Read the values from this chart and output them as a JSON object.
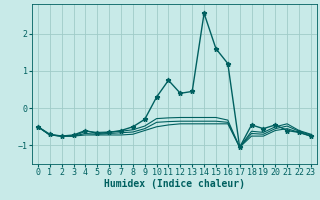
{
  "xlabel": "Humidex (Indice chaleur)",
  "ylabel": "",
  "background_color": "#c8eae8",
  "grid_color": "#a0ccc8",
  "line_color": "#006060",
  "x": [
    0,
    1,
    2,
    3,
    4,
    5,
    6,
    7,
    8,
    9,
    10,
    11,
    12,
    13,
    14,
    15,
    16,
    17,
    18,
    19,
    20,
    21,
    22,
    23
  ],
  "series": [
    [
      -0.5,
      -0.7,
      -0.75,
      -0.72,
      -0.6,
      -0.68,
      -0.65,
      -0.6,
      -0.5,
      -0.3,
      0.3,
      0.75,
      0.4,
      0.45,
      2.55,
      1.6,
      1.2,
      -1.05,
      -0.45,
      -0.55,
      -0.45,
      -0.6,
      -0.65,
      -0.75
    ],
    [
      -0.5,
      -0.72,
      -0.75,
      -0.75,
      -0.72,
      -0.72,
      -0.72,
      -0.72,
      -0.7,
      -0.6,
      -0.5,
      -0.45,
      -0.42,
      -0.42,
      -0.42,
      -0.42,
      -0.42,
      -1.05,
      -0.75,
      -0.75,
      -0.6,
      -0.55,
      -0.65,
      -0.75
    ],
    [
      -0.5,
      -0.72,
      -0.75,
      -0.75,
      -0.68,
      -0.7,
      -0.68,
      -0.66,
      -0.64,
      -0.55,
      -0.38,
      -0.36,
      -0.35,
      -0.35,
      -0.35,
      -0.35,
      -0.38,
      -1.05,
      -0.68,
      -0.7,
      -0.55,
      -0.48,
      -0.62,
      -0.72
    ],
    [
      -0.5,
      -0.72,
      -0.75,
      -0.75,
      -0.62,
      -0.65,
      -0.64,
      -0.62,
      -0.58,
      -0.48,
      -0.28,
      -0.26,
      -0.25,
      -0.25,
      -0.25,
      -0.25,
      -0.32,
      -1.05,
      -0.62,
      -0.65,
      -0.5,
      -0.42,
      -0.6,
      -0.7
    ]
  ],
  "ylim": [
    -1.5,
    2.8
  ],
  "yticks": [
    -1,
    0,
    1,
    2
  ],
  "xticks": [
    0,
    1,
    2,
    3,
    4,
    5,
    6,
    7,
    8,
    9,
    10,
    11,
    12,
    13,
    14,
    15,
    16,
    17,
    18,
    19,
    20,
    21,
    22,
    23
  ],
  "xlim": [
    -0.5,
    23.5
  ],
  "label_fontsize": 7,
  "tick_fontsize": 6
}
